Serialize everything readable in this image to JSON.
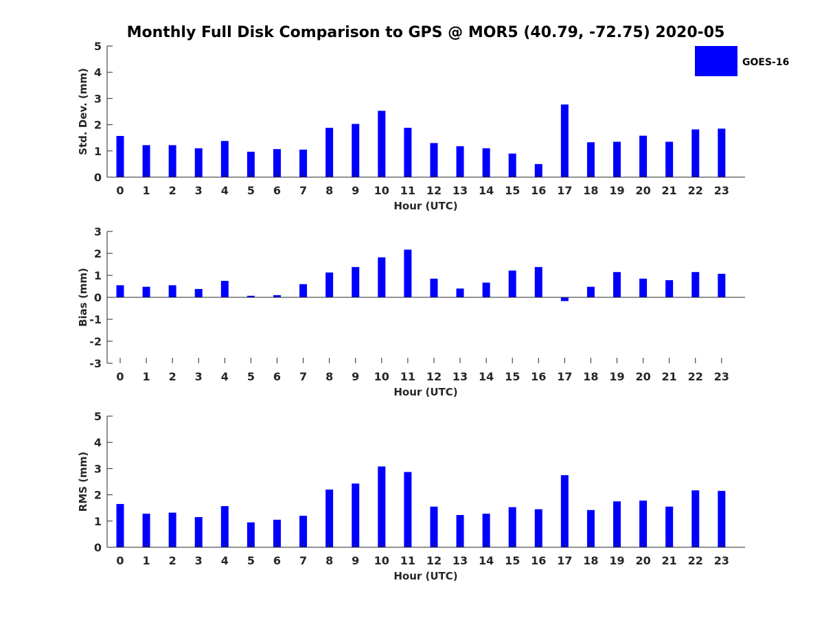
{
  "title": "Monthly Full Disk Comparison to GPS @ MOR5 (40.79, -72.75) 2020-05",
  "legend": {
    "label": "GOES-16",
    "color": "#0000ff"
  },
  "colors": {
    "bar": "#0000ff",
    "axis": "#262626",
    "text": "#262626"
  },
  "chart_data": [
    {
      "type": "bar",
      "name": "std-dev",
      "xlabel": "Hour (UTC)",
      "ylabel": "Std. Dev. (mm)",
      "ylim": [
        0,
        5
      ],
      "yticks": [
        0,
        1,
        2,
        3,
        4,
        5
      ],
      "categories": [
        "0",
        "1",
        "2",
        "3",
        "4",
        "5",
        "6",
        "7",
        "8",
        "9",
        "10",
        "11",
        "12",
        "13",
        "14",
        "15",
        "16",
        "17",
        "18",
        "19",
        "20",
        "21",
        "22",
        "23"
      ],
      "series": [
        {
          "name": "GOES-16",
          "values": [
            1.57,
            1.22,
            1.22,
            1.1,
            1.38,
            0.97,
            1.07,
            1.05,
            1.88,
            2.03,
            2.53,
            1.88,
            1.3,
            1.18,
            1.1,
            0.9,
            0.5,
            2.77,
            1.33,
            1.35,
            1.58,
            1.35,
            1.82,
            1.85
          ]
        }
      ]
    },
    {
      "type": "bar",
      "name": "bias",
      "xlabel": "Hour (UTC)",
      "ylabel": "Bias (mm)",
      "ylim": [
        -3,
        3
      ],
      "yticks": [
        -3,
        -2,
        -1,
        0,
        1,
        2,
        3
      ],
      "categories": [
        "0",
        "1",
        "2",
        "3",
        "4",
        "5",
        "6",
        "7",
        "8",
        "9",
        "10",
        "11",
        "12",
        "13",
        "14",
        "15",
        "16",
        "17",
        "18",
        "19",
        "20",
        "21",
        "22",
        "23"
      ],
      "series": [
        {
          "name": "GOES-16",
          "values": [
            0.55,
            0.48,
            0.55,
            0.38,
            0.75,
            0.07,
            0.1,
            0.6,
            1.13,
            1.38,
            1.82,
            2.17,
            0.85,
            0.4,
            0.67,
            1.22,
            1.38,
            -0.17,
            0.48,
            1.15,
            0.85,
            0.78,
            1.15,
            1.07
          ]
        }
      ]
    },
    {
      "type": "bar",
      "name": "rms",
      "xlabel": "Hour (UTC)",
      "ylabel": "RMS (mm)",
      "ylim": [
        0,
        5
      ],
      "yticks": [
        0,
        1,
        2,
        3,
        4,
        5
      ],
      "categories": [
        "0",
        "1",
        "2",
        "3",
        "4",
        "5",
        "6",
        "7",
        "8",
        "9",
        "10",
        "11",
        "12",
        "13",
        "14",
        "15",
        "16",
        "17",
        "18",
        "19",
        "20",
        "21",
        "22",
        "23"
      ],
      "series": [
        {
          "name": "GOES-16",
          "values": [
            1.65,
            1.28,
            1.32,
            1.15,
            1.57,
            0.95,
            1.05,
            1.2,
            2.2,
            2.43,
            3.08,
            2.87,
            1.55,
            1.23,
            1.28,
            1.53,
            1.45,
            2.75,
            1.42,
            1.75,
            1.78,
            1.55,
            2.17,
            2.15
          ]
        }
      ]
    }
  ]
}
